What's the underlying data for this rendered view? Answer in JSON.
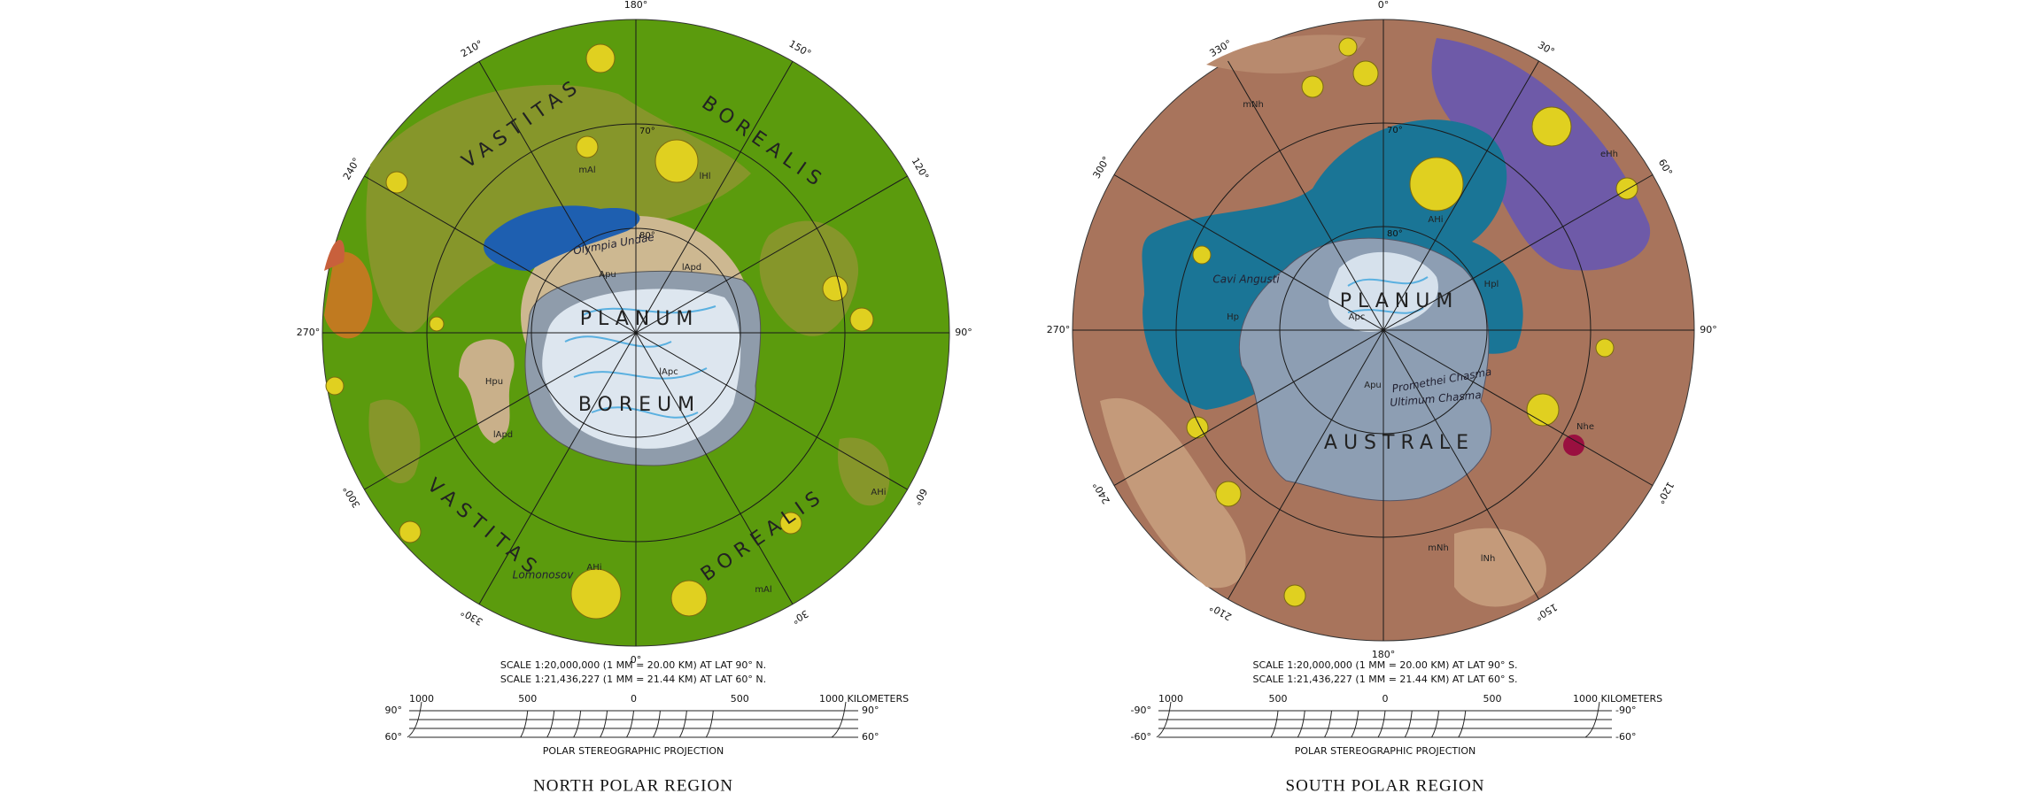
{
  "maps": [
    {
      "title": "NORTH POLAR REGION",
      "longitudes": [
        "180°",
        "150°",
        "120°",
        "90°",
        "60°",
        "30°",
        "0°",
        "330°",
        "300°",
        "270°",
        "240°",
        "210°"
      ],
      "latitudes": [
        "80°",
        "70°"
      ],
      "place_names": [
        "PLANUM",
        "BOREUM",
        "VASTITAS",
        "BOREALIS",
        "VASTITAS",
        "BOREALIS",
        "Olympia Undae",
        "Lomonosov"
      ],
      "units": [
        "mAl",
        "AHi",
        "lHl",
        "Apu",
        "lApd",
        "lApc",
        "Hpu",
        "lApd",
        "mAl",
        "AHi"
      ],
      "scale_lines": [
        "SCALE 1:20,000,000 (1 MM = 20.00 KM) AT LAT 90° N.",
        "SCALE 1:21,436,227 (1 MM = 21.44 KM) AT LAT 60° N."
      ],
      "scale_bar": {
        "distances": [
          "1000",
          "500",
          "0",
          "500",
          "1000 KILOMETERS"
        ],
        "left_lats": [
          "90°",
          "60°"
        ],
        "right_lats": [
          "90°",
          "60°"
        ]
      },
      "projection": "POLAR STEREOGRAPHIC PROJECTION"
    },
    {
      "title": "SOUTH POLAR REGION",
      "longitudes": [
        "0°",
        "30°",
        "60°",
        "90°",
        "120°",
        "150°",
        "180°",
        "210°",
        "240°",
        "270°",
        "300°",
        "330°"
      ],
      "latitudes": [
        "80°",
        "70°"
      ],
      "place_names": [
        "PLANUM",
        "AUSTRALE",
        "Cavi Angusti",
        "Promethei Chasma",
        "Ultimum Chasma"
      ],
      "units": [
        "Apc",
        "Apu",
        "Hp",
        "mNh",
        "Nhe",
        "AHi",
        "lNh",
        "mNh",
        "eHh",
        "Hpl"
      ],
      "scale_lines": [
        "SCALE 1:20,000,000 (1 MM = 20.00 KM) AT LAT 90° S.",
        "SCALE 1:21,436,227 (1 MM = 21.44 KM) AT LAT 60° S."
      ],
      "scale_bar": {
        "distances": [
          "1000",
          "500",
          "0",
          "500",
          "1000 KILOMETERS"
        ],
        "left_lats": [
          "-90°",
          "-60°"
        ],
        "right_lats": [
          "-90°",
          "-60°"
        ]
      },
      "projection": "POLAR STEREOGRAPHIC PROJECTION"
    }
  ]
}
